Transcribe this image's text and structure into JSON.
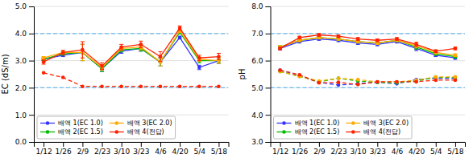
{
  "chart_data": [
    {
      "type": "line",
      "categories": [
        "1/12",
        "1/26",
        "2/9",
        "2/23",
        "3/10",
        "3/23",
        "4/6",
        "4/20",
        "5/4",
        "5/18"
      ],
      "ylabel": "EC (dS/m)",
      "ylim": [
        0.0,
        5.0
      ],
      "yticks": [
        {
          "value": 0.0,
          "label": "0.0"
        },
        {
          "value": 1.0,
          "label": "1.0"
        },
        {
          "value": 2.0,
          "label": "2.0"
        },
        {
          "value": 3.0,
          "label": "3.0"
        },
        {
          "value": 4.0,
          "label": "4.0"
        },
        {
          "value": 5.0,
          "label": "5.0"
        }
      ],
      "grid": true,
      "legend": "lower left",
      "reference_lines": [
        {
          "value": 4.0,
          "color": "#66BBEE",
          "line_style": "dashed"
        },
        {
          "value": 2.0,
          "color": "#66BBEE",
          "line_style": "dashed"
        }
      ],
      "series": [
        {
          "name": "배액 1(EC 1.0)",
          "color": "#3333FF",
          "marker": "circle",
          "line_style": "solid",
          "values": [
            3.05,
            3.2,
            3.3,
            2.7,
            3.35,
            3.45,
            2.95,
            3.85,
            2.75,
            3.0
          ],
          "errors": [
            0.05,
            0.05,
            0.3,
            0.1,
            0.08,
            0.1,
            0.15,
            0.05,
            0.08,
            0.1
          ]
        },
        {
          "name": "배액 2(EC 1.5)",
          "color": "#00BB00",
          "marker": "circle",
          "line_style": "solid",
          "values": [
            3.05,
            3.25,
            3.3,
            2.7,
            3.4,
            3.45,
            2.95,
            4.05,
            3.0,
            3.0
          ],
          "errors": [
            0.05,
            0.05,
            0.3,
            0.1,
            0.08,
            0.1,
            0.15,
            0.05,
            0.08,
            0.1
          ]
        },
        {
          "name": "배액 3(EC 2.0)",
          "color": "#FFAA00",
          "marker": "circle",
          "line_style": "solid",
          "values": [
            3.1,
            3.3,
            3.3,
            2.75,
            3.45,
            3.5,
            2.95,
            4.1,
            3.05,
            3.0
          ],
          "errors": [
            0.05,
            0.05,
            0.3,
            0.1,
            0.08,
            0.1,
            0.15,
            0.05,
            0.08,
            0.1
          ]
        },
        {
          "name": "배액 4(전답)",
          "color": "#FF2200",
          "marker": "circle",
          "line_style": "solid",
          "values": [
            2.95,
            3.3,
            3.4,
            2.8,
            3.5,
            3.6,
            3.15,
            4.2,
            3.1,
            3.15
          ],
          "errors": [
            0.08,
            0.08,
            0.3,
            0.12,
            0.1,
            0.12,
            0.18,
            0.08,
            0.1,
            0.12
          ]
        },
        {
          "color": "#FF2200",
          "marker": "circle",
          "line_style": "dashed",
          "values": [
            2.55,
            2.38,
            2.05,
            2.05,
            2.05,
            2.05,
            2.05,
            2.05,
            2.05,
            2.05
          ]
        }
      ]
    },
    {
      "type": "line",
      "categories": [
        "1/12",
        "1/26",
        "2/9",
        "2/23",
        "3/10",
        "3/23",
        "4/6",
        "4/20",
        "5/4",
        "5/18"
      ],
      "ylabel": "pH",
      "ylim": [
        3.0,
        8.0
      ],
      "yticks": [
        {
          "value": 3.0,
          "label": "3.0"
        },
        {
          "value": 4.0,
          "label": "4.0"
        },
        {
          "value": 5.0,
          "label": "5.0"
        },
        {
          "value": 6.0,
          "label": "6.0"
        },
        {
          "value": 7.0,
          "label": "7.0"
        },
        {
          "value": 8.0,
          "label": "8.0"
        }
      ],
      "grid": true,
      "legend": "lower left",
      "reference_lines": [
        {
          "value": 7.0,
          "color": "#66BBEE",
          "line_style": "dashed"
        },
        {
          "value": 5.0,
          "color": "#66BBEE",
          "line_style": "dashed"
        }
      ],
      "series": [
        {
          "name": "배액 1(EC 1.0)",
          "color": "#3333FF",
          "marker": "circle",
          "line_style": "solid",
          "values": [
            6.45,
            6.7,
            6.8,
            6.75,
            6.65,
            6.6,
            6.7,
            6.45,
            6.2,
            6.1
          ],
          "errors": [
            0.05,
            0.05,
            0.05,
            0.05,
            0.05,
            0.05,
            0.05,
            0.08,
            0.05,
            0.05
          ]
        },
        {
          "name": "배액 2(EC 1.5)",
          "color": "#00BB00",
          "marker": "circle",
          "line_style": "solid",
          "values": [
            6.5,
            6.75,
            6.85,
            6.8,
            6.7,
            6.65,
            6.75,
            6.5,
            6.25,
            6.15
          ],
          "errors": [
            0.05,
            0.05,
            0.05,
            0.05,
            0.05,
            0.05,
            0.05,
            0.08,
            0.05,
            0.05
          ]
        },
        {
          "name": "배액 3(EC 2.0)",
          "color": "#FFAA00",
          "marker": "circle",
          "line_style": "solid",
          "values": [
            6.5,
            6.75,
            6.85,
            6.8,
            6.7,
            6.65,
            6.75,
            6.55,
            6.3,
            6.2
          ],
          "errors": [
            0.05,
            0.05,
            0.05,
            0.05,
            0.05,
            0.05,
            0.05,
            0.08,
            0.05,
            0.05
          ]
        },
        {
          "name": "배액 4(전답)",
          "color": "#FF2200",
          "marker": "circle",
          "line_style": "solid",
          "values": [
            6.45,
            6.85,
            6.95,
            6.9,
            6.8,
            6.75,
            6.8,
            6.6,
            6.35,
            6.45
          ],
          "errors": [
            0.05,
            0.05,
            0.05,
            0.05,
            0.05,
            0.05,
            0.05,
            0.08,
            0.05,
            0.05
          ]
        },
        {
          "color": "#3333FF",
          "marker": "circle",
          "line_style": "dashed",
          "values": [
            5.65,
            5.45,
            5.2,
            5.1,
            5.15,
            5.2,
            5.15,
            5.3,
            5.35,
            5.35
          ]
        },
        {
          "color": "#00BB00",
          "marker": "circle",
          "line_style": "dashed",
          "values": [
            5.6,
            5.42,
            5.22,
            5.35,
            5.25,
            5.2,
            5.18,
            5.25,
            5.38,
            5.38
          ]
        },
        {
          "color": "#FFAA00",
          "marker": "circle",
          "line_style": "dashed",
          "values": [
            5.6,
            5.42,
            5.25,
            5.35,
            5.3,
            5.22,
            5.22,
            5.28,
            5.4,
            5.4
          ]
        },
        {
          "color": "#FF2200",
          "marker": "circle",
          "line_style": "dashed",
          "values": [
            5.65,
            5.48,
            5.18,
            5.2,
            5.12,
            5.22,
            5.22,
            5.22,
            5.28,
            5.28
          ]
        }
      ]
    }
  ]
}
